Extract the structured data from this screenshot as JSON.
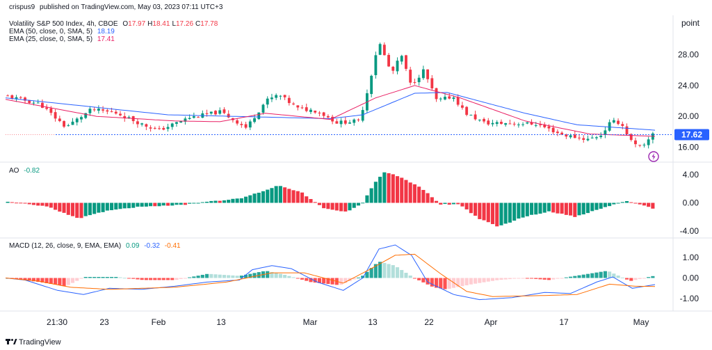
{
  "header_line": {
    "user": "crispus9",
    "rest": "published on TradingView.com, May 03, 2023 07:11 UTC+3"
  },
  "price_pane": {
    "unit_label": "point",
    "title": "Volatility S&P 500 Index, 4h, CBOE",
    "ohlc": [
      {
        "key": "O",
        "value": "17.97"
      },
      {
        "key": "H",
        "value": "18.41"
      },
      {
        "key": "L",
        "value": "17.26"
      },
      {
        "key": "C",
        "value": "17.78"
      }
    ],
    "indicators": [
      {
        "label": "EMA (50, close, 0, SMA, 5)",
        "value": "18.19",
        "color": "#2962ff"
      },
      {
        "label": "EMA (25, close, 0, SMA, 5)",
        "value": "17.41",
        "color": "#e91e63"
      }
    ],
    "current_price": "17.62",
    "current_price_value": 17.62,
    "alert_icon": "lightning-icon"
  },
  "ao_pane": {
    "label": "AO",
    "value": "-0.82",
    "value_color": "#089981"
  },
  "macd_pane": {
    "label": "MACD (12, 26, close, 9, EMA, EMA)",
    "values": [
      {
        "value": "0.09",
        "color": "#089981"
      },
      {
        "value": "-0.32",
        "color": "#2962ff"
      },
      {
        "value": "-0.41",
        "color": "#ff6d00"
      }
    ]
  },
  "x_axis_labels": [
    "21:30",
    "23",
    "Feb",
    "13",
    "Mar",
    "13",
    "22",
    "Apr",
    "17",
    "May"
  ],
  "footer": {
    "brand": "TradingView",
    "logo_icon": "tradingview-logo-icon"
  },
  "colors": {
    "up": "#089981",
    "down": "#f23645",
    "ema50": "#2962ff",
    "ema25": "#e91e63",
    "macd_line": "#2962ff",
    "signal_line": "#ff6d00",
    "price_tag": "#2962ff",
    "alert": "#9c27b0"
  },
  "chart_data": [
    {
      "type": "candlestick",
      "title": "Volatility S&P 500 Index, 4h, CBOE",
      "ylabel": "point",
      "yticks": [
        16.0,
        20.0,
        24.0,
        28.0
      ],
      "ylim": [
        14.5,
        31.5
      ],
      "x_ticks": [
        "21:30",
        "23",
        "Feb",
        "13",
        "Mar",
        "13",
        "22",
        "Apr",
        "17",
        "May"
      ],
      "anchors": [
        {
          "p": 0.0,
          "v": 22.6
        },
        {
          "p": 0.05,
          "v": 21.6
        },
        {
          "p": 0.09,
          "v": 18.6
        },
        {
          "p": 0.13,
          "v": 20.9
        },
        {
          "p": 0.17,
          "v": 20.4
        },
        {
          "p": 0.21,
          "v": 18.9
        },
        {
          "p": 0.235,
          "v": 18.2
        },
        {
          "p": 0.28,
          "v": 19.8
        },
        {
          "p": 0.33,
          "v": 20.6
        },
        {
          "p": 0.37,
          "v": 18.5
        },
        {
          "p": 0.4,
          "v": 22.0
        },
        {
          "p": 0.42,
          "v": 22.8
        },
        {
          "p": 0.45,
          "v": 21.0
        },
        {
          "p": 0.48,
          "v": 20.7
        },
        {
          "p": 0.51,
          "v": 19.2
        },
        {
          "p": 0.545,
          "v": 19.4
        },
        {
          "p": 0.56,
          "v": 24.0
        },
        {
          "p": 0.575,
          "v": 29.8
        },
        {
          "p": 0.595,
          "v": 25.5
        },
        {
          "p": 0.61,
          "v": 28.0
        },
        {
          "p": 0.625,
          "v": 24.0
        },
        {
          "p": 0.645,
          "v": 26.0
        },
        {
          "p": 0.665,
          "v": 22.0
        },
        {
          "p": 0.69,
          "v": 22.6
        },
        {
          "p": 0.71,
          "v": 20.4
        },
        {
          "p": 0.74,
          "v": 19.1
        },
        {
          "p": 0.78,
          "v": 19.1
        },
        {
          "p": 0.82,
          "v": 19.0
        },
        {
          "p": 0.86,
          "v": 17.6
        },
        {
          "p": 0.9,
          "v": 17.0
        },
        {
          "p": 0.92,
          "v": 17.6
        },
        {
          "p": 0.935,
          "v": 19.3
        },
        {
          "p": 0.95,
          "v": 19.2
        },
        {
          "p": 0.97,
          "v": 16.3
        },
        {
          "p": 0.985,
          "v": 15.9
        },
        {
          "p": 1.0,
          "v": 17.8
        }
      ],
      "candle_count": 150,
      "ema50_anchors": [
        {
          "p": 0.0,
          "v": 22.4
        },
        {
          "p": 0.25,
          "v": 20.2
        },
        {
          "p": 0.5,
          "v": 19.7
        },
        {
          "p": 0.55,
          "v": 20.2
        },
        {
          "p": 0.63,
          "v": 23.0
        },
        {
          "p": 0.68,
          "v": 23.1
        },
        {
          "p": 0.8,
          "v": 20.4
        },
        {
          "p": 0.88,
          "v": 18.9
        },
        {
          "p": 1.0,
          "v": 18.2
        }
      ],
      "ema25_anchors": [
        {
          "p": 0.0,
          "v": 22.2
        },
        {
          "p": 0.14,
          "v": 20.0
        },
        {
          "p": 0.26,
          "v": 19.4
        },
        {
          "p": 0.33,
          "v": 19.3
        },
        {
          "p": 0.4,
          "v": 20.4
        },
        {
          "p": 0.5,
          "v": 19.6
        },
        {
          "p": 0.57,
          "v": 22.4
        },
        {
          "p": 0.63,
          "v": 24.0
        },
        {
          "p": 0.7,
          "v": 22.4
        },
        {
          "p": 0.8,
          "v": 19.4
        },
        {
          "p": 0.9,
          "v": 17.7
        },
        {
          "p": 1.0,
          "v": 17.4
        }
      ],
      "horizontal_line": 17.62,
      "last_close": 17.78
    },
    {
      "type": "bar",
      "title": "AO",
      "yticks": [
        -4.0,
        0.0,
        4.0
      ],
      "ylim": [
        -4.6,
        5.0
      ],
      "anchors": [
        {
          "p": 0.0,
          "v": 0.2
        },
        {
          "p": 0.06,
          "v": -0.5
        },
        {
          "p": 0.11,
          "v": -2.2
        },
        {
          "p": 0.16,
          "v": -1.0
        },
        {
          "p": 0.21,
          "v": -0.5
        },
        {
          "p": 0.27,
          "v": -0.3
        },
        {
          "p": 0.31,
          "v": 0.2
        },
        {
          "p": 0.36,
          "v": 0.6
        },
        {
          "p": 0.4,
          "v": 1.8
        },
        {
          "p": 0.42,
          "v": 2.5
        },
        {
          "p": 0.455,
          "v": 1.5
        },
        {
          "p": 0.49,
          "v": -0.8
        },
        {
          "p": 0.525,
          "v": -1.3
        },
        {
          "p": 0.55,
          "v": 0.0
        },
        {
          "p": 0.57,
          "v": 3.0
        },
        {
          "p": 0.585,
          "v": 4.4
        },
        {
          "p": 0.6,
          "v": 4.0
        },
        {
          "p": 0.64,
          "v": 2.2
        },
        {
          "p": 0.67,
          "v": -0.2
        },
        {
          "p": 0.7,
          "v": -0.2
        },
        {
          "p": 0.73,
          "v": -2.2
        },
        {
          "p": 0.76,
          "v": -3.4
        },
        {
          "p": 0.8,
          "v": -2.0
        },
        {
          "p": 0.84,
          "v": -1.2
        },
        {
          "p": 0.88,
          "v": -2.0
        },
        {
          "p": 0.93,
          "v": -0.5
        },
        {
          "p": 0.96,
          "v": 0.3
        },
        {
          "p": 1.0,
          "v": -0.8
        }
      ],
      "bar_count": 150,
      "last_value": -0.82
    },
    {
      "type": "histogram+line",
      "title": "MACD (12, 26, close, 9, EMA, EMA)",
      "yticks": [
        -1.0,
        0.0,
        1.0
      ],
      "ylim": [
        -1.5,
        1.6
      ],
      "histogram_anchors": [
        {
          "p": 0.0,
          "v": 0.0
        },
        {
          "p": 0.05,
          "v": -0.2
        },
        {
          "p": 0.09,
          "v": -0.4
        },
        {
          "p": 0.12,
          "v": 0.05
        },
        {
          "p": 0.17,
          "v": 0.05
        },
        {
          "p": 0.21,
          "v": -0.1
        },
        {
          "p": 0.26,
          "v": -0.1
        },
        {
          "p": 0.31,
          "v": 0.2
        },
        {
          "p": 0.36,
          "v": 0.1
        },
        {
          "p": 0.4,
          "v": 0.35
        },
        {
          "p": 0.43,
          "v": 0.15
        },
        {
          "p": 0.47,
          "v": -0.2
        },
        {
          "p": 0.515,
          "v": -0.35
        },
        {
          "p": 0.55,
          "v": 0.1
        },
        {
          "p": 0.575,
          "v": 0.8
        },
        {
          "p": 0.6,
          "v": 0.6
        },
        {
          "p": 0.63,
          "v": 0.0
        },
        {
          "p": 0.66,
          "v": -0.45
        },
        {
          "p": 0.68,
          "v": -0.55
        },
        {
          "p": 0.72,
          "v": -0.3
        },
        {
          "p": 0.76,
          "v": -0.1
        },
        {
          "p": 0.8,
          "v": 0.0
        },
        {
          "p": 0.84,
          "v": -0.1
        },
        {
          "p": 0.88,
          "v": 0.1
        },
        {
          "p": 0.93,
          "v": 0.35
        },
        {
          "p": 0.965,
          "v": -0.15
        },
        {
          "p": 1.0,
          "v": 0.09
        }
      ],
      "macd_anchors": [
        {
          "p": 0.0,
          "v": 0.0
        },
        {
          "p": 0.03,
          "v": -0.1
        },
        {
          "p": 0.08,
          "v": -0.6
        },
        {
          "p": 0.12,
          "v": -0.8
        },
        {
          "p": 0.16,
          "v": -0.5
        },
        {
          "p": 0.21,
          "v": -0.55
        },
        {
          "p": 0.26,
          "v": -0.4
        },
        {
          "p": 0.31,
          "v": -0.2
        },
        {
          "p": 0.36,
          "v": -0.1
        },
        {
          "p": 0.38,
          "v": 0.4
        },
        {
          "p": 0.41,
          "v": 0.6
        },
        {
          "p": 0.44,
          "v": 0.45
        },
        {
          "p": 0.48,
          "v": -0.2
        },
        {
          "p": 0.52,
          "v": -0.6
        },
        {
          "p": 0.55,
          "v": 0.0
        },
        {
          "p": 0.575,
          "v": 1.4
        },
        {
          "p": 0.6,
          "v": 1.6
        },
        {
          "p": 0.625,
          "v": 1.1
        },
        {
          "p": 0.65,
          "v": -0.2
        },
        {
          "p": 0.69,
          "v": -0.8
        },
        {
          "p": 0.73,
          "v": -1.05
        },
        {
          "p": 0.78,
          "v": -0.95
        },
        {
          "p": 0.83,
          "v": -0.7
        },
        {
          "p": 0.87,
          "v": -0.75
        },
        {
          "p": 0.91,
          "v": -0.2
        },
        {
          "p": 0.935,
          "v": 0.05
        },
        {
          "p": 0.965,
          "v": -0.5
        },
        {
          "p": 1.0,
          "v": -0.32
        }
      ],
      "signal_anchors": [
        {
          "p": 0.0,
          "v": 0.0
        },
        {
          "p": 0.05,
          "v": -0.15
        },
        {
          "p": 0.1,
          "v": -0.45
        },
        {
          "p": 0.16,
          "v": -0.55
        },
        {
          "p": 0.26,
          "v": -0.45
        },
        {
          "p": 0.34,
          "v": -0.2
        },
        {
          "p": 0.41,
          "v": 0.25
        },
        {
          "p": 0.46,
          "v": 0.25
        },
        {
          "p": 0.52,
          "v": -0.25
        },
        {
          "p": 0.56,
          "v": 0.4
        },
        {
          "p": 0.6,
          "v": 1.1
        },
        {
          "p": 0.63,
          "v": 1.15
        },
        {
          "p": 0.67,
          "v": 0.2
        },
        {
          "p": 0.71,
          "v": -0.65
        },
        {
          "p": 0.75,
          "v": -0.9
        },
        {
          "p": 0.83,
          "v": -0.85
        },
        {
          "p": 0.88,
          "v": -0.8
        },
        {
          "p": 0.93,
          "v": -0.3
        },
        {
          "p": 0.97,
          "v": -0.4
        },
        {
          "p": 1.0,
          "v": -0.41
        }
      ],
      "bar_count": 150,
      "last_histogram": 0.09,
      "last_macd": -0.32,
      "last_signal": -0.41
    }
  ]
}
